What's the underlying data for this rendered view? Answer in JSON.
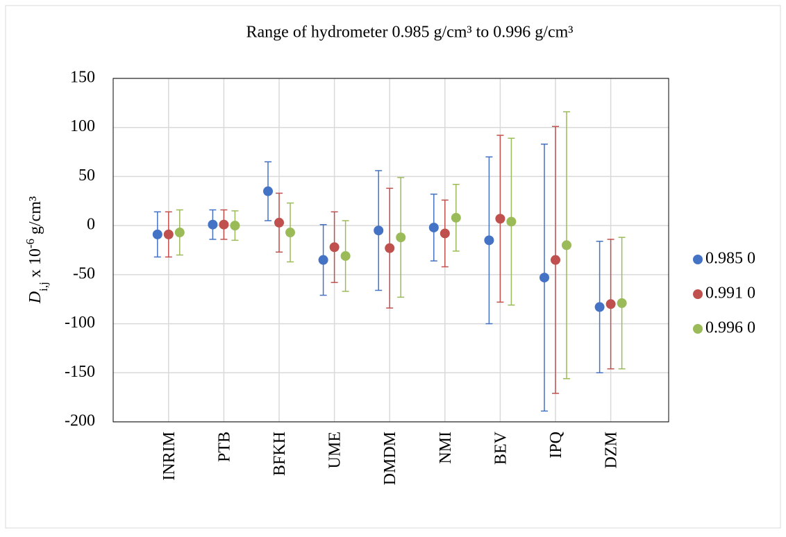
{
  "chart_data": {
    "type": "errorbar",
    "title": "Range of hydrometer 0.985 g/cm³ to 0.996 g/cm³",
    "ylabel": {
      "symbol": "D",
      "subscript": "i,j",
      "text": " x 10",
      "superscript": "-6",
      "unit": " g/cm³"
    },
    "categories": [
      "INRIM",
      "PTB",
      "BFKH",
      "UME",
      "DMDM",
      "NMI",
      "BEV",
      "IPQ",
      "DZM"
    ],
    "series": [
      {
        "name": "0.985 0",
        "color": "#4472c4",
        "values": [
          -9,
          1,
          35,
          -35,
          -5,
          -2,
          -15,
          -53,
          -83
        ],
        "errors": [
          23,
          15,
          30,
          36,
          61,
          34,
          85,
          136,
          67
        ]
      },
      {
        "name": "0.991 0",
        "color": "#c0504d",
        "values": [
          -9,
          1,
          3,
          -22,
          -23,
          -8,
          7,
          -35,
          -80
        ],
        "errors": [
          23,
          15,
          30,
          36,
          61,
          34,
          85,
          136,
          66
        ]
      },
      {
        "name": "0.996 0",
        "color": "#9bbb59",
        "values": [
          -7,
          0,
          -7,
          -31,
          -12,
          8,
          4,
          -20,
          -79
        ],
        "errors": [
          23,
          15,
          30,
          36,
          61,
          34,
          85,
          136,
          67
        ]
      }
    ],
    "ylim": [
      -200,
      150
    ],
    "yticks": [
      -200,
      -150,
      -100,
      -50,
      0,
      50,
      100,
      150
    ],
    "grid": true,
    "legend": "right"
  }
}
